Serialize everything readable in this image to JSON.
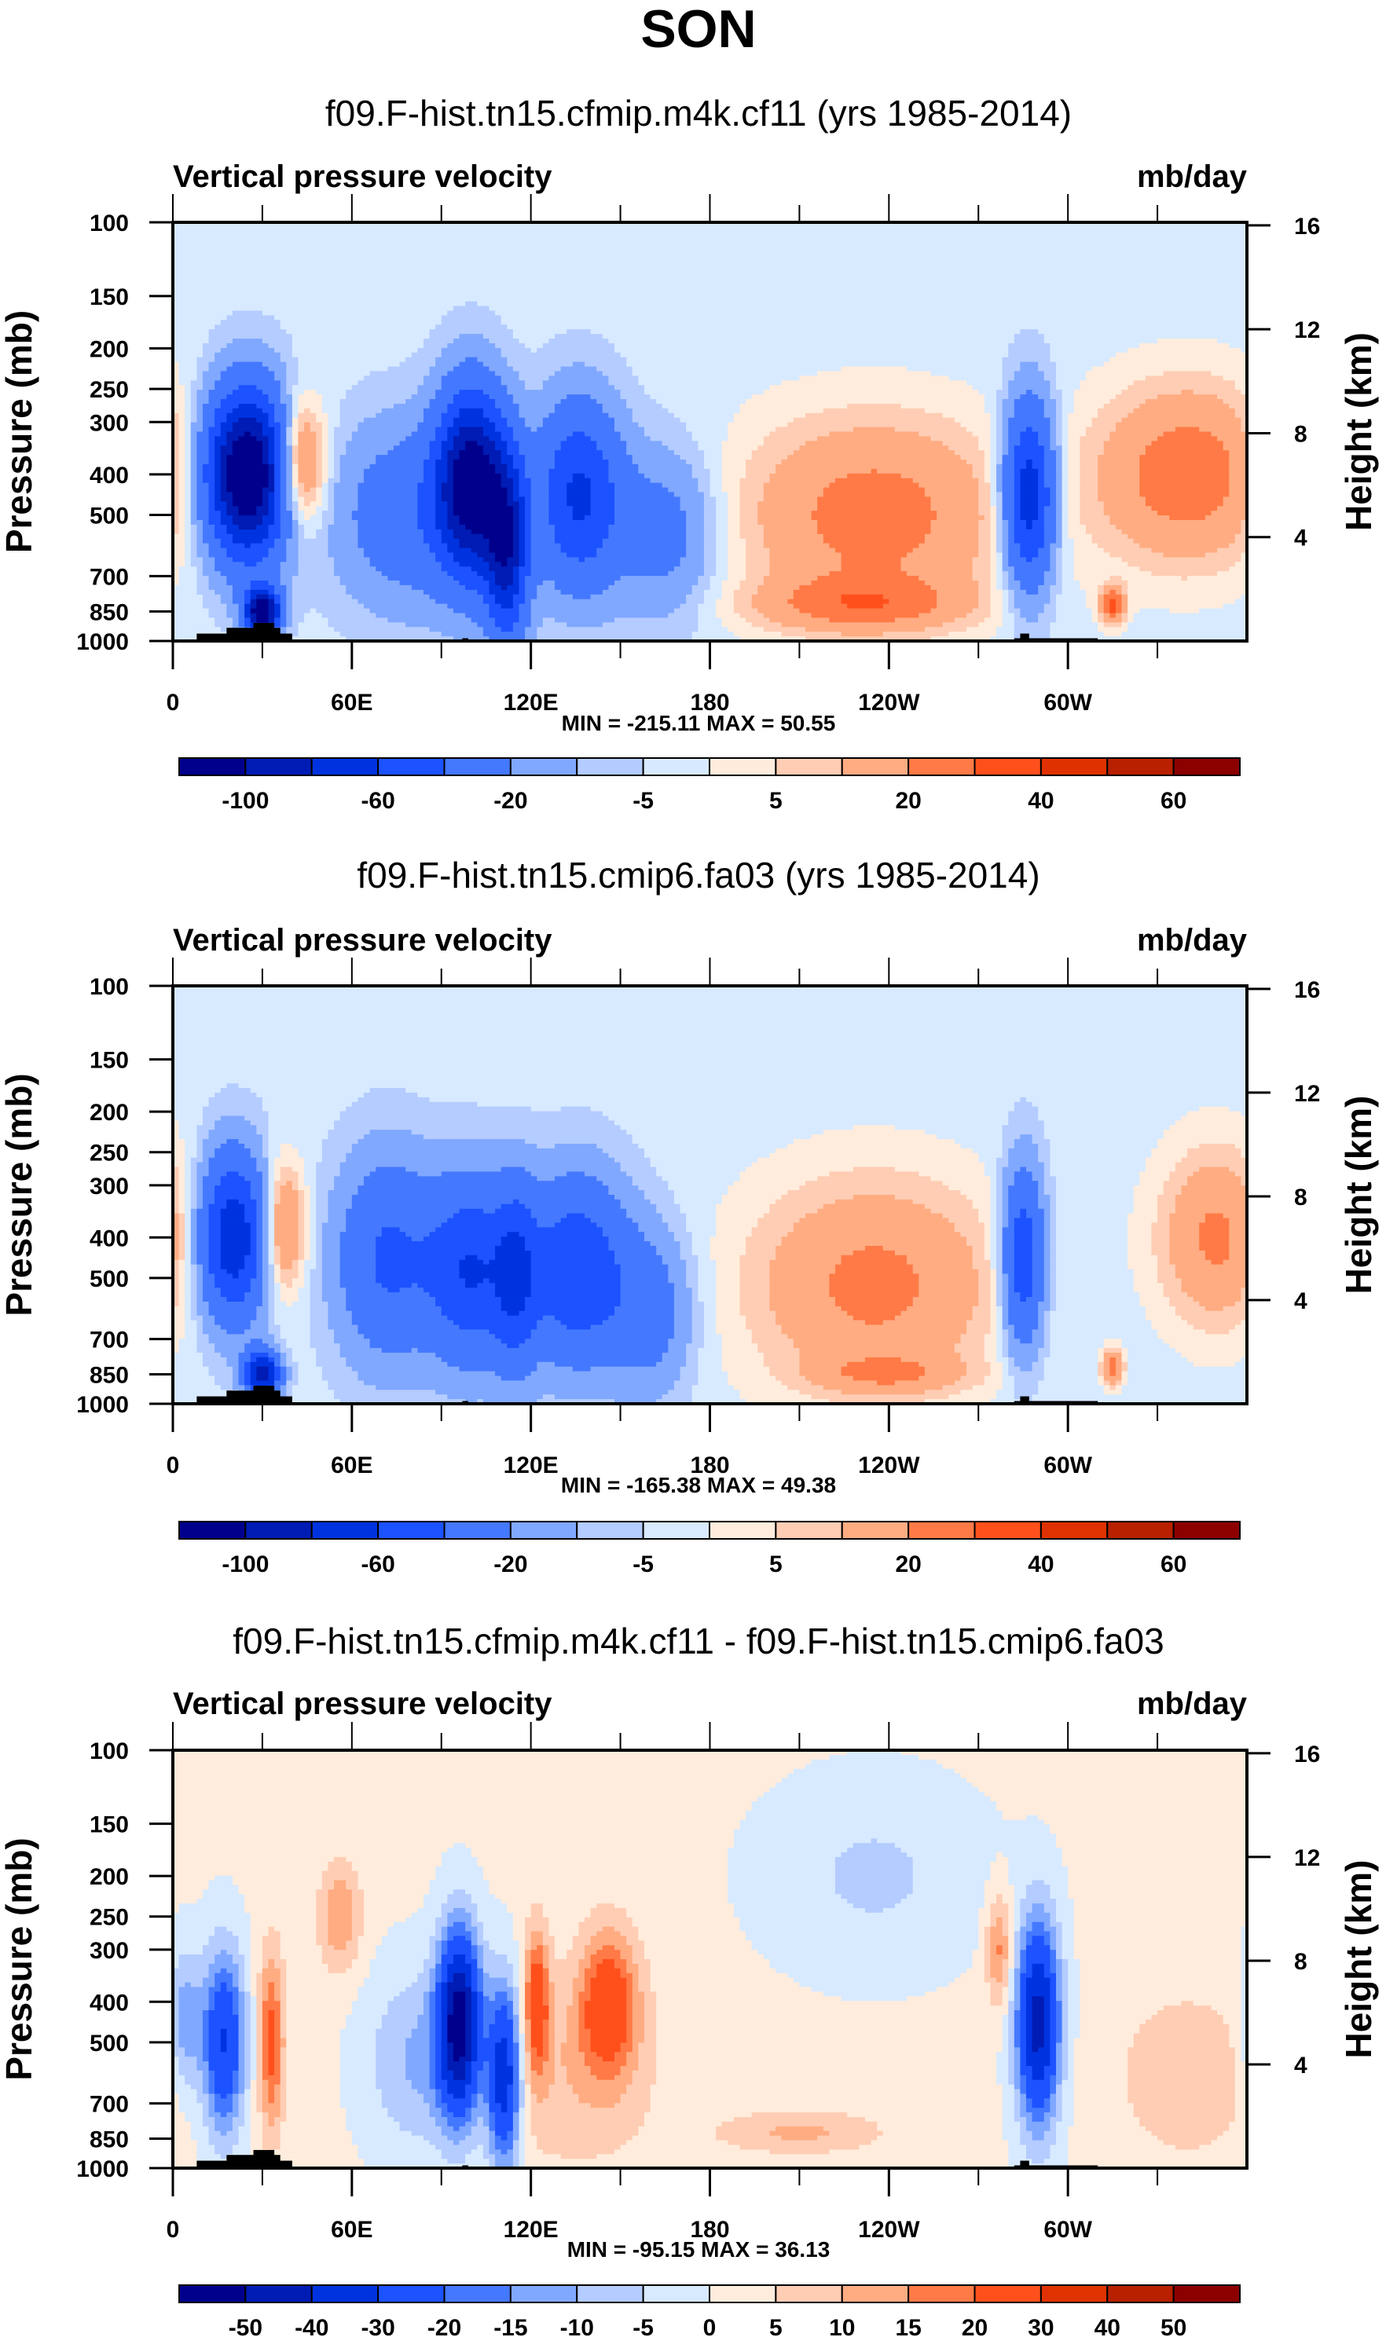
{
  "suptitle": "SON",
  "chart_data": [
    {
      "type": "heatmap",
      "title": "f09.F-hist.tn15.cfmip.m4k.cf11 (yrs 1985-2014)",
      "left_string": "Vertical pressure velocity",
      "right_string": "mb/day",
      "ylabel": "Pressure (mb)",
      "ylabel_right": "Height (km)",
      "xlabel": "",
      "xlim": [
        0,
        360
      ],
      "ylim": [
        1000,
        100
      ],
      "yscale": "log",
      "x_ticks": [
        0,
        60,
        120,
        180,
        240,
        300
      ],
      "x_tick_labels": [
        "0",
        "60E",
        "120E",
        "180",
        "120W",
        "60W"
      ],
      "y_ticks": [
        100,
        150,
        200,
        250,
        300,
        400,
        500,
        700,
        850,
        1000
      ],
      "y_tick_labels": [
        "100",
        "150",
        "200",
        "250",
        "300",
        "400",
        "500",
        "700",
        "850",
        "1000"
      ],
      "y_right_ticks": [
        16,
        12,
        8,
        4
      ],
      "min_max_label": "MIN = -215.11  MAX =  50.55",
      "min": -215.11,
      "max": 50.55,
      "colorbar": {
        "levels": [
          -120,
          -100,
          -80,
          -60,
          -40,
          -20,
          -10,
          -5,
          0,
          5,
          10,
          20,
          30,
          40,
          50,
          60
        ],
        "labels": [
          "-100",
          "-60",
          "-20",
          "-5",
          "5",
          "20",
          "40",
          "60"
        ],
        "label_levels": [
          -100,
          -60,
          -20,
          -5,
          5,
          20,
          40,
          60
        ],
        "colors": [
          "#00008c",
          "#001cb4",
          "#0033e0",
          "#1c52ff",
          "#4478ff",
          "#80a8ff",
          "#b4ccff",
          "#d8eaff",
          "#ffecdc",
          "#ffcdb4",
          "#ffac82",
          "#ff7a46",
          "#ff501c",
          "#e03200",
          "#b82000",
          "#8c0000"
        ]
      },
      "features": [
        {
          "lon": 25,
          "p": 400,
          "amp": -130,
          "wx": 10,
          "wy": 0.9
        },
        {
          "lon": 30,
          "p": 850,
          "amp": -120,
          "wx": 4,
          "wy": 0.25
        },
        {
          "lon": 42,
          "p": 380,
          "amp": 45,
          "wx": 6,
          "wy": 0.7
        },
        {
          "lon": 78,
          "p": 500,
          "amp": -30,
          "wx": 16,
          "wy": 1.0
        },
        {
          "lon": 100,
          "p": 420,
          "amp": -110,
          "wx": 8,
          "wy": 1.0
        },
        {
          "lon": 112,
          "p": 600,
          "amp": -80,
          "wx": 5,
          "wy": 1.0
        },
        {
          "lon": 136,
          "p": 450,
          "amp": -60,
          "wx": 10,
          "wy": 1.0
        },
        {
          "lon": 165,
          "p": 550,
          "amp": -25,
          "wx": 12,
          "wy": 0.9
        },
        {
          "lon": 235,
          "p": 500,
          "amp": 28,
          "wx": 32,
          "wy": 1.1
        },
        {
          "lon": 230,
          "p": 820,
          "amp": 22,
          "wx": 25,
          "wy": 0.3
        },
        {
          "lon": 287,
          "p": 450,
          "amp": -75,
          "wx": 6,
          "wy": 1.0
        },
        {
          "lon": 340,
          "p": 400,
          "amp": 30,
          "wx": 22,
          "wy": 1.0
        },
        {
          "lon": 315,
          "p": 820,
          "amp": 35,
          "wx": 3,
          "wy": 0.2
        }
      ]
    },
    {
      "type": "heatmap",
      "title": "f09.F-hist.tn15.cmip6.fa03 (yrs 1985-2014)",
      "left_string": "Vertical pressure velocity",
      "right_string": "mb/day",
      "ylabel": "Pressure (mb)",
      "ylabel_right": "Height (km)",
      "xlabel": "",
      "xlim": [
        0,
        360
      ],
      "ylim": [
        1000,
        100
      ],
      "yscale": "log",
      "x_ticks": [
        0,
        60,
        120,
        180,
        240,
        300
      ],
      "x_tick_labels": [
        "0",
        "60E",
        "120E",
        "180",
        "120W",
        "60W"
      ],
      "y_ticks": [
        100,
        150,
        200,
        250,
        300,
        400,
        500,
        700,
        850,
        1000
      ],
      "y_tick_labels": [
        "100",
        "150",
        "200",
        "250",
        "300",
        "400",
        "500",
        "700",
        "850",
        "1000"
      ],
      "y_right_ticks": [
        16,
        12,
        8,
        4
      ],
      "min_max_label": "MIN = -165.38  MAX =  49.38",
      "min": -165.38,
      "max": 49.38,
      "colorbar": {
        "levels": [
          -120,
          -100,
          -80,
          -60,
          -40,
          -20,
          -10,
          -5,
          0,
          5,
          10,
          20,
          30,
          40,
          50,
          60
        ],
        "labels": [
          "-100",
          "-60",
          "-20",
          "-5",
          "5",
          "20",
          "40",
          "60"
        ],
        "label_levels": [
          -100,
          -60,
          -20,
          -5,
          5,
          20,
          40,
          60
        ],
        "colors": [
          "#00008c",
          "#001cb4",
          "#0033e0",
          "#1c52ff",
          "#4478ff",
          "#80a8ff",
          "#b4ccff",
          "#d8eaff",
          "#ffecdc",
          "#ffcdb4",
          "#ffac82",
          "#ff7a46",
          "#ff501c",
          "#e03200",
          "#b82000",
          "#8c0000"
        ]
      },
      "features": [
        {
          "lon": 20,
          "p": 400,
          "amp": -75,
          "wx": 8,
          "wy": 0.9
        },
        {
          "lon": 30,
          "p": 850,
          "amp": -90,
          "wx": 4,
          "wy": 0.25
        },
        {
          "lon": 37,
          "p": 380,
          "amp": 30,
          "wx": 5,
          "wy": 0.7
        },
        {
          "lon": 72,
          "p": 450,
          "amp": -40,
          "wx": 12,
          "wy": 1.1
        },
        {
          "lon": 100,
          "p": 480,
          "amp": -55,
          "wx": 10,
          "wy": 1.0
        },
        {
          "lon": 115,
          "p": 500,
          "amp": -40,
          "wx": 5,
          "wy": 1.0
        },
        {
          "lon": 135,
          "p": 480,
          "amp": -55,
          "wx": 12,
          "wy": 1.0
        },
        {
          "lon": 160,
          "p": 600,
          "amp": -25,
          "wx": 10,
          "wy": 0.9
        },
        {
          "lon": 235,
          "p": 520,
          "amp": 26,
          "wx": 30,
          "wy": 1.2
        },
        {
          "lon": 240,
          "p": 850,
          "amp": 15,
          "wx": 18,
          "wy": 0.2
        },
        {
          "lon": 285,
          "p": 450,
          "amp": -55,
          "wx": 5,
          "wy": 1.0
        },
        {
          "lon": 350,
          "p": 400,
          "amp": 25,
          "wx": 14,
          "wy": 1.0
        },
        {
          "lon": 315,
          "p": 820,
          "amp": 30,
          "wx": 2.5,
          "wy": 0.2
        }
      ]
    },
    {
      "type": "heatmap",
      "title": "f09.F-hist.tn15.cfmip.m4k.cf11 - f09.F-hist.tn15.cmip6.fa03",
      "left_string": "Vertical pressure velocity",
      "right_string": "mb/day",
      "ylabel": "Pressure (mb)",
      "ylabel_right": "Height (km)",
      "xlabel": "",
      "xlim": [
        0,
        360
      ],
      "ylim": [
        1000,
        100
      ],
      "yscale": "log",
      "x_ticks": [
        0,
        60,
        120,
        180,
        240,
        300
      ],
      "x_tick_labels": [
        "0",
        "60E",
        "120E",
        "180",
        "120W",
        "60W"
      ],
      "y_ticks": [
        100,
        150,
        200,
        250,
        300,
        400,
        500,
        700,
        850,
        1000
      ],
      "y_tick_labels": [
        "100",
        "150",
        "200",
        "250",
        "300",
        "400",
        "500",
        "700",
        "850",
        "1000"
      ],
      "y_right_ticks": [
        16,
        12,
        8,
        4
      ],
      "min_max_label": "MIN = -95.15  MAX =  36.13",
      "min": -95.15,
      "max": 36.13,
      "colorbar": {
        "levels": [
          -60,
          -50,
          -40,
          -30,
          -20,
          -15,
          -10,
          -5,
          0,
          5,
          10,
          15,
          20,
          30,
          40,
          50,
          60
        ],
        "labels": [
          "-50",
          "-40",
          "-30",
          "-20",
          "-15",
          "-10",
          "-5",
          "0",
          "5",
          "10",
          "15",
          "20",
          "30",
          "40",
          "50"
        ],
        "label_levels": [
          -50,
          -40,
          -30,
          -20,
          -15,
          -10,
          -5,
          0,
          5,
          10,
          15,
          20,
          30,
          40,
          50
        ],
        "colors": [
          "#00008c",
          "#001cb4",
          "#0033e0",
          "#1c52ff",
          "#4478ff",
          "#80a8ff",
          "#b4ccff",
          "#d8eaff",
          "#ffecdc",
          "#ffcdb4",
          "#ffac82",
          "#ff7a46",
          "#ff501c",
          "#e03200",
          "#b82000",
          "#8c0000"
        ]
      },
      "features": [
        {
          "lon": 4,
          "p": 450,
          "amp": -15,
          "wx": 4,
          "wy": 0.8
        },
        {
          "lon": 17,
          "p": 500,
          "amp": -32,
          "wx": 5,
          "wy": 1.0
        },
        {
          "lon": 33,
          "p": 500,
          "amp": 22,
          "wx": 3,
          "wy": 1.0
        },
        {
          "lon": 56,
          "p": 250,
          "amp": 14,
          "wx": 5,
          "wy": 0.6
        },
        {
          "lon": 82,
          "p": 550,
          "amp": -12,
          "wx": 12,
          "wy": 1.0
        },
        {
          "lon": 96,
          "p": 450,
          "amp": -55,
          "wx": 5,
          "wy": 1.0
        },
        {
          "lon": 111,
          "p": 600,
          "amp": -40,
          "wx": 4,
          "wy": 1.0
        },
        {
          "lon": 122,
          "p": 400,
          "amp": 24,
          "wx": 3,
          "wy": 0.8
        },
        {
          "lon": 146,
          "p": 400,
          "amp": 24,
          "wx": 7,
          "wy": 0.8
        },
        {
          "lon": 135,
          "p": 600,
          "amp": 8,
          "wx": 20,
          "wy": 1.1
        },
        {
          "lon": 210,
          "p": 820,
          "amp": 10,
          "wx": 20,
          "wy": 0.25
        },
        {
          "lon": 235,
          "p": 200,
          "amp": -7,
          "wx": 25,
          "wy": 1.0
        },
        {
          "lon": 277,
          "p": 300,
          "amp": 16,
          "wx": 3,
          "wy": 0.6
        },
        {
          "lon": 290,
          "p": 450,
          "amp": -45,
          "wx": 5,
          "wy": 1.1
        },
        {
          "lon": 340,
          "p": 600,
          "amp": 9,
          "wx": 16,
          "wy": 0.9
        }
      ]
    }
  ],
  "topography": [
    {
      "lon0": 8,
      "lon1": 40,
      "p_top": 960
    },
    {
      "lon0": 18,
      "lon1": 36,
      "p_top": 930
    },
    {
      "lon0": 27,
      "lon1": 34,
      "p_top": 905
    },
    {
      "lon0": 97,
      "lon1": 99,
      "p_top": 985
    },
    {
      "lon0": 282,
      "lon1": 310,
      "p_top": 985
    },
    {
      "lon0": 284,
      "lon1": 287,
      "p_top": 960
    }
  ]
}
